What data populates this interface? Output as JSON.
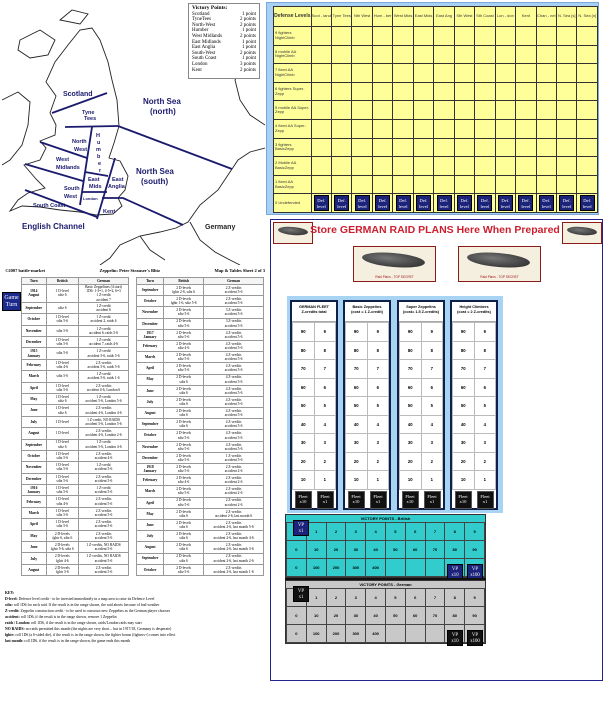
{
  "map": {
    "vp_title": "Victory Points:",
    "vp_items": [
      {
        "area": "Scotland",
        "points": "1 point"
      },
      {
        "area": "TyneTees",
        "points": "2 points"
      },
      {
        "area": "North-West",
        "points": "2 points"
      },
      {
        "area": "Humber",
        "points": "1 point"
      },
      {
        "area": "West Midlands",
        "points": "2 points"
      },
      {
        "area": "East Midlands",
        "points": "1 point"
      },
      {
        "area": "East Anglia",
        "points": "1 point"
      },
      {
        "area": "South-West",
        "points": "2 points"
      },
      {
        "area": "South Coast",
        "points": "1 point"
      },
      {
        "area": "London",
        "points": "3 points"
      },
      {
        "area": "Kent",
        "points": "2 points"
      }
    ],
    "labels": {
      "scotland": "Scotland",
      "tyne": "Tyne",
      "tees": "Tees",
      "north_sea_n1": "North Sea",
      "north_sea_n2": "(north)",
      "humber": [
        "H",
        "u",
        "m",
        "b",
        "e",
        "r"
      ],
      "north": "North",
      "west": "West",
      "west2": "West",
      "midlands": "Midlands",
      "east": "East",
      "mids": "Mids",
      "east2": "East",
      "anglia": "Anglia",
      "south": "South",
      "west3": "West",
      "london": "London",
      "south_coast": "South Coast",
      "kent": "Kent",
      "north_sea_s1": "North Sea",
      "north_sea_s2": "(south)",
      "channel": "English Channel",
      "germany": "Germany"
    }
  },
  "header": {
    "credits": "©2007 battle-market",
    "title": "Zeppelin: Peter Strauser's Blitz",
    "sheet": "Map & Tables Sheet 2 of 3"
  },
  "game_turn_marker": "Game\nTurn",
  "turn_table": {
    "columns": [
      "Turn",
      "British",
      "German"
    ],
    "left_rows": [
      [
        "1914\nAugust",
        "1 D-level\nsdtz 6",
        "Basic Zeppelines (4 start)\n1D6: 1-3=1, 4-5=2, 6=3\n1 Z-credit\naccident 7"
      ],
      [
        "September",
        "sdtz 6",
        "1 Z-credit\naccident 6"
      ],
      [
        "October",
        "1 D-level\nsdtz 5-6",
        "1 Z-credit\naccident 2, raids 6"
      ],
      [
        "November",
        "sdtz 5-6",
        "1 Z-credit\naccident 6, raids 5-6"
      ],
      [
        "December",
        "1 D-level\nsdtz 5-6",
        "1 Z-credit\naccident 7, raids 4-6"
      ],
      [
        "1915\nJanuary",
        "sdtz 5-6",
        "1 Z-credit\naccident 5-6, raids 5-6"
      ],
      [
        "February",
        "1 D-level\nsdtz 4-6",
        "2 Z-credits\naccident 5-6, raids 5-6"
      ],
      [
        "March",
        "sdtz 5-6",
        "1 Z-credit\naccident 5-6, raids 1-6"
      ],
      [
        "April",
        "1 D-level\nsdtz 5-6",
        "2 Z-credits\naccident 4-6, London 6"
      ],
      [
        "May",
        "1 D-level\nsdtz 6",
        "1 Z-credit\naccident 5-6, London 5-6"
      ],
      [
        "June",
        "1 D-level\nsdtz 6",
        "2 Z-credits\naccident 4-6, London 4-6"
      ],
      [
        "July",
        "1 D-level",
        "1 Z-credit, NO RAIDS\naccident 5-6, London 5-6"
      ],
      [
        "August",
        "1 D-level",
        "2 Z-credits\naccident 4-6, London 2-6"
      ],
      [
        "September",
        "1 D-level\nsdtz 6",
        "1 Z-credit\naccident 5-6, London 4-6"
      ],
      [
        "October",
        "1 D-level\nsdtz 5-6",
        "2 Z-credits\naccident 4-6"
      ],
      [
        "November",
        "1 D-level\nsdtz 5-6",
        "1 Z-credit\naccident 5-6"
      ],
      [
        "December",
        "1 D-level\nsdtz 5-6",
        "2 Z-credits\naccident 5-6"
      ],
      [
        "1916\nJanuary",
        "1 D-level\nsdtz 5-6",
        "1 Z-credit\naccident 5-6"
      ],
      [
        "February",
        "1 D-level\nsdtz 4-6",
        "2 Z-credits\naccident 5-6"
      ],
      [
        "March",
        "1 D-level\nsdtz 5-6",
        "2 Z-credits\naccident 5-6"
      ],
      [
        "April",
        "1 D-level\nsdtz 5-6",
        "2 Z-credits\naccident 5-6"
      ],
      [
        "May",
        "2 D-levels\nfghtr 6, sdtz 6",
        "2 Z-credits\naccident 5-6"
      ],
      [
        "June",
        "2 D-levels\nfghtr 5-6, sdtz 6",
        "1 Z-credits, NO RAIDS\naccident 5-6"
      ],
      [
        "July",
        "2 D-levels\nfghtr 4-6",
        "1 Z-credits, NO RAIDS\naccident 5-6"
      ],
      [
        "August",
        "2 D-levels\nfghtr 3-6",
        "2 Z-credits\naccident 5-6"
      ]
    ],
    "right_rows": [
      [
        "September",
        "2 D-levels\nfghtr 2-6, sdtz 6",
        "2 Z-credits\naccident 5-6"
      ],
      [
        "October",
        "2 D-levels\nfghtr 1-6, sdtz 5-6",
        "2 Z-credits\naccident 5-6"
      ],
      [
        "November",
        "2 D-levels\nsdtz 5-6",
        "3 Z-credits\naccident 5-6"
      ],
      [
        "December",
        "2 D-levels\nsdtz 5-6",
        "3 Z-credits\naccident 5-6"
      ],
      [
        "1917\nJanuary",
        "2 D-levels\nsdtz 5-6",
        "4 Z-credits\naccident 5-6"
      ],
      [
        "February",
        "2 D-levels\nsdtz 4-6",
        "4 Z-credits\naccident 5-6"
      ],
      [
        "March",
        "2 D-levels\nsdtz 5-6",
        "4 Z-credits\naccident 5-6"
      ],
      [
        "April",
        "2 D-levels\nsdtz 5-6",
        "4 Z-credits\naccident 5-6"
      ],
      [
        "May",
        "2 D-levels\nsdtz 6",
        "4 Z-credits\naccident 5-6"
      ],
      [
        "June",
        "2 D-levels\nsdtz 6",
        "4 Z-credits\naccident 5-6"
      ],
      [
        "July",
        "2 D-levels\nsdtz 6",
        "4 Z-credits\naccident 5-6"
      ],
      [
        "August",
        "2 D-levels\nsdtz 6",
        "4 Z-credits\naccident 5-6"
      ],
      [
        "September",
        "2 D-levels\nsdtz 6",
        "4 Z-credits\naccident 5-6"
      ],
      [
        "October",
        "2 D-levels\nsdtz 5-6",
        "4 Z-credits\naccident 5-6"
      ],
      [
        "November",
        "2 D-levels\nsdtz 5-6",
        "4 Z-credits\naccident 5-6"
      ],
      [
        "December",
        "2 D-levels\nsdtz 5-6",
        "1 Z-credits\naccident 5-6"
      ],
      [
        "1918\nJanuary",
        "2 D-levels\nsdtz 5-6",
        "2 Z-credits\naccident 2-6"
      ],
      [
        "February",
        "2 D-levels\nsdtz 4-6",
        "2 Z-credits\naccident 2-6"
      ],
      [
        "March",
        "2 D-levels\nsdtz 5-6",
        "2 Z-credits\naccident 2-6"
      ],
      [
        "April",
        "2 D-levels\nsdtz 5-6",
        "2 Z-credits\naccident 2-6"
      ],
      [
        "May",
        "2 D-levels\nsdtz 6",
        "2 Z-credits\naccident 2-6, last month 6"
      ],
      [
        "June",
        "2 D-levels\nsdtz 6",
        "2 Z-credits\naccident 2-6, last month 5-6"
      ],
      [
        "July",
        "2 D-levels\nsdtz 6",
        "2 Z-credits\naccident 2-6, last month 4-6"
      ],
      [
        "August",
        "2 D-levels\nsdtz 6",
        "2 Z-credits\naccident 2-6, last month 3-6"
      ],
      [
        "September",
        "2 D-levels\nsdtz 6",
        "2 Z-credits\naccident 2-6, last month 2-6"
      ],
      [
        "October",
        "2 D-levels\nsdtz 5-6",
        "2 Z-credits\naccident 2-6, last month 1-6"
      ]
    ]
  },
  "key": {
    "title": "KEY:",
    "items": [
      {
        "term": "D-level:",
        "text": "Defence level credit - to be invested immediately in a map area to raise its Defence Level"
      },
      {
        "term": "sdtz:",
        "text": "roll 1D6 for each raid. If the result is in the range shown, the raid aborts because of bad weather"
      },
      {
        "term": "Z-credit:",
        "text": "Zeppelin construction credit - to be used to construct new Zeppelins as the German player chooses"
      },
      {
        "term": "accident:",
        "text": "roll 1D6, if the result is in the range shown, remove 1 Zeppelin"
      },
      {
        "term": "raids / London:",
        "text": "roll 1D6, if the result is in the range shown, raids/London raids may start"
      },
      {
        "term": "NO RAIDS:",
        "text": "no raids permitted this month (the nights are very short – but in 1917/18, Germany is desperate)"
      },
      {
        "term": "fghtr:",
        "text": "roll 1D6 (a 6-sided die), if the result is in the range shown, the fighter bonus (fighters+) comes into effect"
      },
      {
        "term": "last month:",
        "text": "roll 1D6, if the result is in the range shown, the game ends this month"
      }
    ]
  },
  "defense": {
    "header": "Defense Levels",
    "columns": [
      "Scot - land",
      "Tyne Tees",
      "Nth West",
      "Hum - ber",
      "West Mids",
      "East Mids",
      "East Ang",
      "Sth West",
      "Sth Coast",
      "Lon - don",
      "Kent",
      "Chan - nel",
      "N. Sea [s]",
      "N. Sea [n]"
    ],
    "rows": [
      "9 fighters NightClimb",
      "8 mobile AA NightClimb",
      "7 fixed AA NightClimb",
      "6 fighters Super-Zepp",
      "5 mobile AA Super-Zepp",
      "4 fixed AA Super-Zepp",
      "3 fighters BasicZepp",
      "2 Mobile AA BasicZepp",
      "1 fixed AA BasicZepp",
      "0 Undefended"
    ],
    "counter": "Def. level",
    "colors": {
      "grid": "#ffff99",
      "frame": "#a8d0f5",
      "counter": "#1c237a"
    }
  },
  "raid": {
    "title": "Store GERMAN RAID PLANS Here When Prepared",
    "card_caption": "Raid Plans - TOP SECRET",
    "title_color": "#cc1f2e"
  },
  "fleet": {
    "panels": [
      {
        "title": "GERMAN FLEET\nZ-credits total"
      },
      {
        "title": "Basic Zeppelins\n(cost = 1 Z-credit)"
      },
      {
        "title": "Super Zeppelins\n(cost= 1.5 Z-credits)"
      },
      {
        "title": "Height Climbers\n(cost = 2 Z-credits)"
      }
    ],
    "tens": [
      "90",
      "80",
      "70",
      "60",
      "50",
      "40",
      "30",
      "20",
      "10"
    ],
    "ones": [
      "9",
      "8",
      "7",
      "6",
      "5",
      "4",
      "3",
      "2",
      "1"
    ],
    "counter_x10": "Fleet\nx10",
    "counter_x1": "Fleet\nx1"
  },
  "vp_british": {
    "title": "VICTORY POINTS - British",
    "color": "#33cccc",
    "rows": [
      [
        "0",
        "1",
        "2",
        "3",
        "4",
        "5",
        "6",
        "7",
        "8",
        "9"
      ],
      [
        "0",
        "10",
        "20",
        "30",
        "40",
        "50",
        "60",
        "70",
        "80",
        "90"
      ],
      [
        "0",
        "100",
        "200",
        "300",
        "400",
        "",
        "",
        "",
        "",
        ""
      ]
    ],
    "counters": [
      "VP\nx1",
      "VP\nx10",
      "VP\nx100"
    ]
  },
  "vp_german": {
    "title": "VICTORY POINTS - German",
    "color": "#c8c8c8",
    "rows": [
      [
        "0",
        "1",
        "2",
        "3",
        "4",
        "5",
        "6",
        "7",
        "8",
        "9"
      ],
      [
        "0",
        "10",
        "20",
        "30",
        "40",
        "50",
        "60",
        "70",
        "80",
        "90"
      ],
      [
        "0",
        "100",
        "200",
        "300",
        "400",
        "",
        "",
        "",
        "",
        ""
      ]
    ],
    "counters": [
      "VP\nx1",
      "VP\nx10",
      "VP\nx100"
    ]
  }
}
